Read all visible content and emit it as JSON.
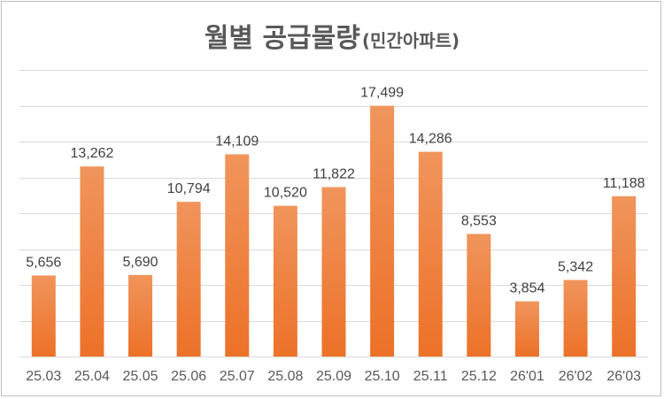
{
  "chart_data": {
    "type": "bar",
    "title": "월별 공급물량",
    "subtitle": "(민간아파트)",
    "categories": [
      "25.03",
      "25.04",
      "25.05",
      "25.06",
      "25.07",
      "25.08",
      "25.09",
      "25.10",
      "25.11",
      "25.12",
      "26'01",
      "26'02",
      "26'03"
    ],
    "values": [
      5656,
      13262,
      5690,
      10794,
      14109,
      10520,
      11822,
      17499,
      14286,
      8553,
      3854,
      5342,
      11188
    ],
    "data_labels": [
      "5,656",
      "13,262",
      "5,690",
      "10,794",
      "14,109",
      "10,520",
      "11,822",
      "17,499",
      "14,286",
      "8,553",
      "3,854",
      "5,342",
      "11,188"
    ],
    "ylim": [
      0,
      20000
    ],
    "grid": true,
    "legend": "none",
    "colors": {
      "bar_top": "#f0955c",
      "bar_bottom": "#ed7128",
      "grid": "#d9d9d9",
      "text": "#595959"
    }
  }
}
